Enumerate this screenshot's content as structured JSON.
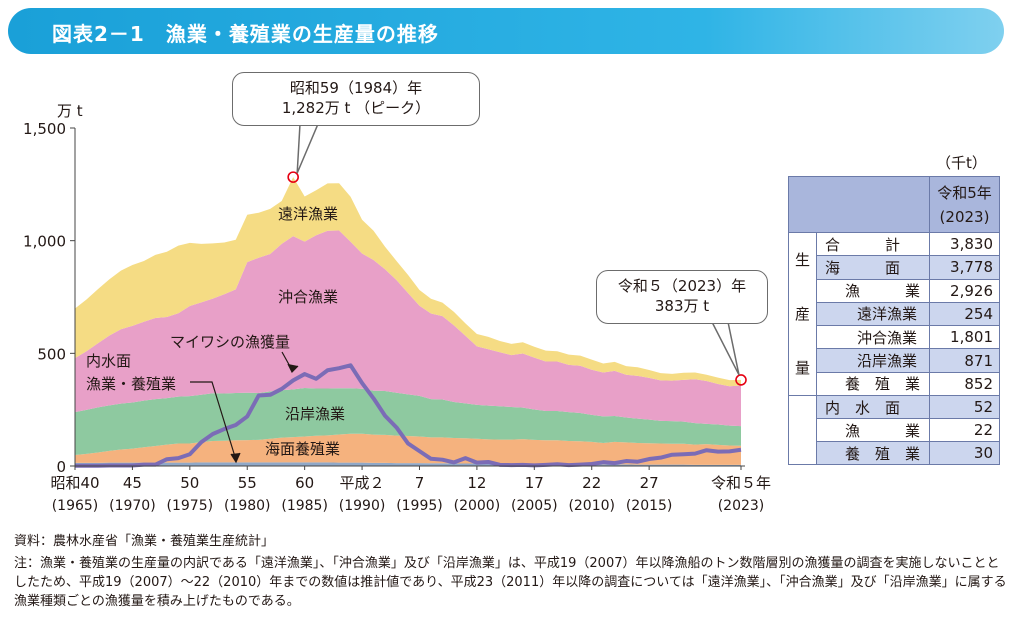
{
  "title": "図表2－1　漁業・養殖業の生産量の推移",
  "chart_data": {
    "type": "area",
    "ylabel": "万 t",
    "ylim": [
      0,
      1500
    ],
    "yticks": [
      "0",
      "500",
      "1,000",
      "1,500"
    ],
    "x": [
      1965,
      1966,
      1967,
      1968,
      1969,
      1970,
      1971,
      1972,
      1973,
      1974,
      1975,
      1976,
      1977,
      1978,
      1979,
      1980,
      1981,
      1982,
      1983,
      1984,
      1985,
      1986,
      1987,
      1988,
      1989,
      1990,
      1991,
      1992,
      1993,
      1994,
      1995,
      1996,
      1997,
      1998,
      1999,
      2000,
      2001,
      2002,
      2003,
      2004,
      2005,
      2006,
      2007,
      2008,
      2009,
      2010,
      2011,
      2012,
      2013,
      2014,
      2015,
      2016,
      2017,
      2018,
      2019,
      2020,
      2021,
      2022,
      2023
    ],
    "xticks": [
      {
        "x": 1965,
        "label": "昭和40",
        "sub": "(1965)"
      },
      {
        "x": 1970,
        "label": "45",
        "sub": "(1970)"
      },
      {
        "x": 1975,
        "label": "50",
        "sub": "(1975)"
      },
      {
        "x": 1980,
        "label": "55",
        "sub": "(1980)"
      },
      {
        "x": 1985,
        "label": "60",
        "sub": "(1985)"
      },
      {
        "x": 1990,
        "label": "平成２",
        "sub": "(1990)"
      },
      {
        "x": 1995,
        "label": "7",
        "sub": "(1995)"
      },
      {
        "x": 2000,
        "label": "12",
        "sub": "(2000)"
      },
      {
        "x": 2005,
        "label": "17",
        "sub": "(2005)"
      },
      {
        "x": 2010,
        "label": "22",
        "sub": "(2010)"
      },
      {
        "x": 2015,
        "label": "27",
        "sub": "(2015)"
      },
      {
        "x": 2023,
        "label": "令和５年",
        "sub": "(2023)"
      }
    ],
    "series": [
      {
        "name": "内水面漁業・養殖業",
        "color": "#8fa8c8",
        "values": [
          14,
          14,
          14,
          15,
          15,
          15,
          15,
          15,
          15,
          15,
          15,
          16,
          16,
          16,
          16,
          16,
          16,
          16,
          16,
          16,
          16,
          16,
          16,
          15,
          15,
          15,
          14,
          14,
          13,
          13,
          13,
          12,
          12,
          11,
          11,
          11,
          10,
          10,
          9,
          9,
          9,
          9,
          8,
          8,
          8,
          7,
          7,
          7,
          7,
          6,
          6,
          6,
          6,
          6,
          5,
          5,
          5,
          5,
          5
        ]
      },
      {
        "name": "海面養殖業",
        "color": "#f5b27e",
        "values": [
          35,
          40,
          46,
          52,
          58,
          62,
          68,
          74,
          80,
          85,
          85,
          90,
          95,
          96,
          98,
          99,
          100,
          105,
          110,
          112,
          115,
          118,
          120,
          125,
          128,
          128,
          125,
          124,
          122,
          120,
          118,
          115,
          115,
          113,
          112,
          110,
          108,
          107,
          108,
          110,
          107,
          105,
          106,
          103,
          102,
          100,
          95,
          100,
          98,
          96,
          95,
          94,
          93,
          93,
          90,
          92,
          89,
          86,
          85
        ]
      },
      {
        "name": "沿岸漁業",
        "color": "#8ec9a0",
        "values": [
          190,
          195,
          200,
          202,
          204,
          205,
          207,
          208,
          206,
          208,
          210,
          210,
          212,
          210,
          210,
          210,
          208,
          210,
          210,
          212,
          215,
          210,
          208,
          205,
          202,
          200,
          195,
          195,
          190,
          185,
          180,
          170,
          168,
          160,
          155,
          150,
          150,
          148,
          145,
          140,
          135,
          130,
          130,
          128,
          125,
          120,
          118,
          115,
          110,
          108,
          105,
          100,
          100,
          98,
          95,
          90,
          90,
          88,
          87
        ]
      },
      {
        "name": "沖合漁業",
        "color": "#e8a0c8",
        "values": [
          240,
          260,
          285,
          310,
          330,
          340,
          350,
          360,
          360,
          370,
          400,
          410,
          420,
          440,
          460,
          580,
          600,
          610,
          650,
          680,
          650,
          680,
          700,
          700,
          650,
          600,
          580,
          540,
          500,
          450,
          400,
          380,
          370,
          340,
          300,
          260,
          250,
          240,
          230,
          240,
          230,
          220,
          220,
          210,
          210,
          200,
          195,
          200,
          190,
          190,
          185,
          180,
          180,
          185,
          195,
          190,
          180,
          175,
          180
        ]
      },
      {
        "name": "遠洋漁業",
        "color": "#f5dc84",
        "values": [
          220,
          230,
          240,
          250,
          260,
          270,
          270,
          280,
          290,
          300,
          280,
          260,
          245,
          230,
          220,
          210,
          200,
          200,
          190,
          262,
          200,
          200,
          210,
          210,
          200,
          150,
          130,
          100,
          85,
          80,
          70,
          65,
          60,
          60,
          55,
          55,
          55,
          50,
          50,
          50,
          48,
          48,
          45,
          45,
          45,
          45,
          40,
          40,
          38,
          38,
          35,
          32,
          30,
          32,
          30,
          28,
          28,
          27,
          25
        ]
      }
    ],
    "line": {
      "name": "マイワシの漁獲量",
      "color": "#7b6cb6",
      "values": [
        1,
        1,
        1,
        2,
        2,
        2,
        6,
        6,
        30,
        35,
        52,
        106,
        142,
        164,
        182,
        220,
        313,
        316,
        342,
        380,
        408,
        387,
        425,
        434,
        447,
        368,
        300,
        223,
        171,
        100,
        66,
        32,
        28,
        16,
        35,
        15,
        18,
        5,
        4,
        5,
        3,
        5,
        8,
        4,
        6,
        9,
        17,
        13,
        22,
        19,
        31,
        37,
        50,
        52,
        55,
        70,
        64,
        65,
        72
      ]
    },
    "callouts": [
      {
        "line1": "昭和59（1984）年",
        "line2": "1,282万 t （ピーク）"
      },
      {
        "line1": "令和５（2023）年",
        "line2": "383万 t"
      }
    ],
    "labels": {
      "ensei": "遠洋漁業",
      "okiai": "沖合漁業",
      "maiwashi": "マイワシの漁獲量",
      "naisui1": "内水面",
      "naisui2": "漁業・養殖業",
      "engan": "沿岸漁業",
      "yoshoku": "海面養殖業"
    }
  },
  "table": {
    "unit": "（千t）",
    "year_label": "令和5年",
    "year_sub": "(2023)",
    "side_label": [
      "生",
      "産",
      "量"
    ],
    "rows": [
      {
        "label": "合　　　計",
        "value": "3,830"
      },
      {
        "label": "海　　　面",
        "value": "3,778"
      },
      {
        "label": "漁　　　業",
        "value": "2,926"
      },
      {
        "label": "遠洋漁業",
        "value": "254"
      },
      {
        "label": "沖合漁業",
        "value": "1,801"
      },
      {
        "label": "沿岸漁業",
        "value": "871"
      },
      {
        "label": "養　殖　業",
        "value": "852"
      },
      {
        "label": "内　水　面",
        "value": "52"
      },
      {
        "label": "漁　　　業",
        "value": "22"
      },
      {
        "label": "養　殖　業",
        "value": "30"
      }
    ]
  },
  "source": "資料：農林水産省「漁業・養殖業生産統計」",
  "note": "注：漁業・養殖業の生産量の内訳である「遠洋漁業」、「沖合漁業」及び「沿岸漁業」は、平成19（2007）年以降漁船のトン数階層別の漁獲量の調査を実施しないこととしたため、平成19（2007）～22（2010）年までの数値は推計値であり、平成23（2011）年以降の調査については「遠洋漁業」、「沖合漁業」及び「沿岸漁業」に属する漁業種類ごとの漁獲量を積み上げたものである。"
}
